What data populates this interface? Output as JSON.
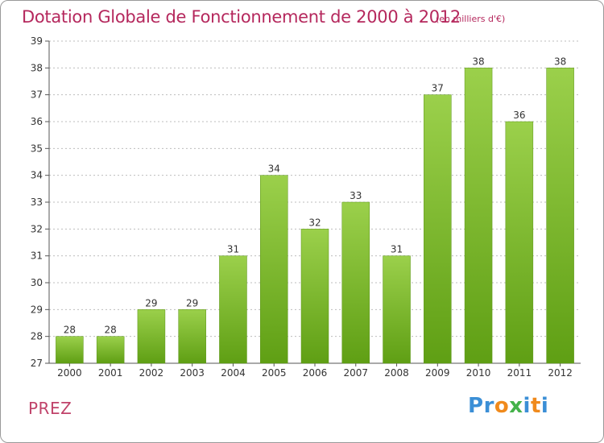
{
  "title": "Dotation Globale de Fonctionnement de 2000 à 2012",
  "unit": "(en milliers d'€)",
  "commune": "PREZ",
  "logo_text": "Proxiti",
  "colors": {
    "title": "#b5285d",
    "bar_top": "#9bd04b",
    "bar_bottom": "#5f9f14",
    "grid": "#bdbdbd"
  },
  "chart_data": {
    "type": "bar",
    "title": "Dotation Globale de Fonctionnement de 2000 à 2012",
    "subtitle": "(en milliers d'€)",
    "categories": [
      "2000",
      "2001",
      "2002",
      "2003",
      "2004",
      "2005",
      "2006",
      "2007",
      "2008",
      "2009",
      "2010",
      "2011",
      "2012"
    ],
    "values": [
      28,
      28,
      29,
      29,
      31,
      34,
      32,
      33,
      31,
      37,
      38,
      36,
      38
    ],
    "ylim": [
      27,
      39
    ],
    "yticks": [
      27,
      28,
      29,
      30,
      31,
      32,
      33,
      34,
      35,
      36,
      37,
      38,
      39
    ],
    "grid": true,
    "legend": "none"
  }
}
